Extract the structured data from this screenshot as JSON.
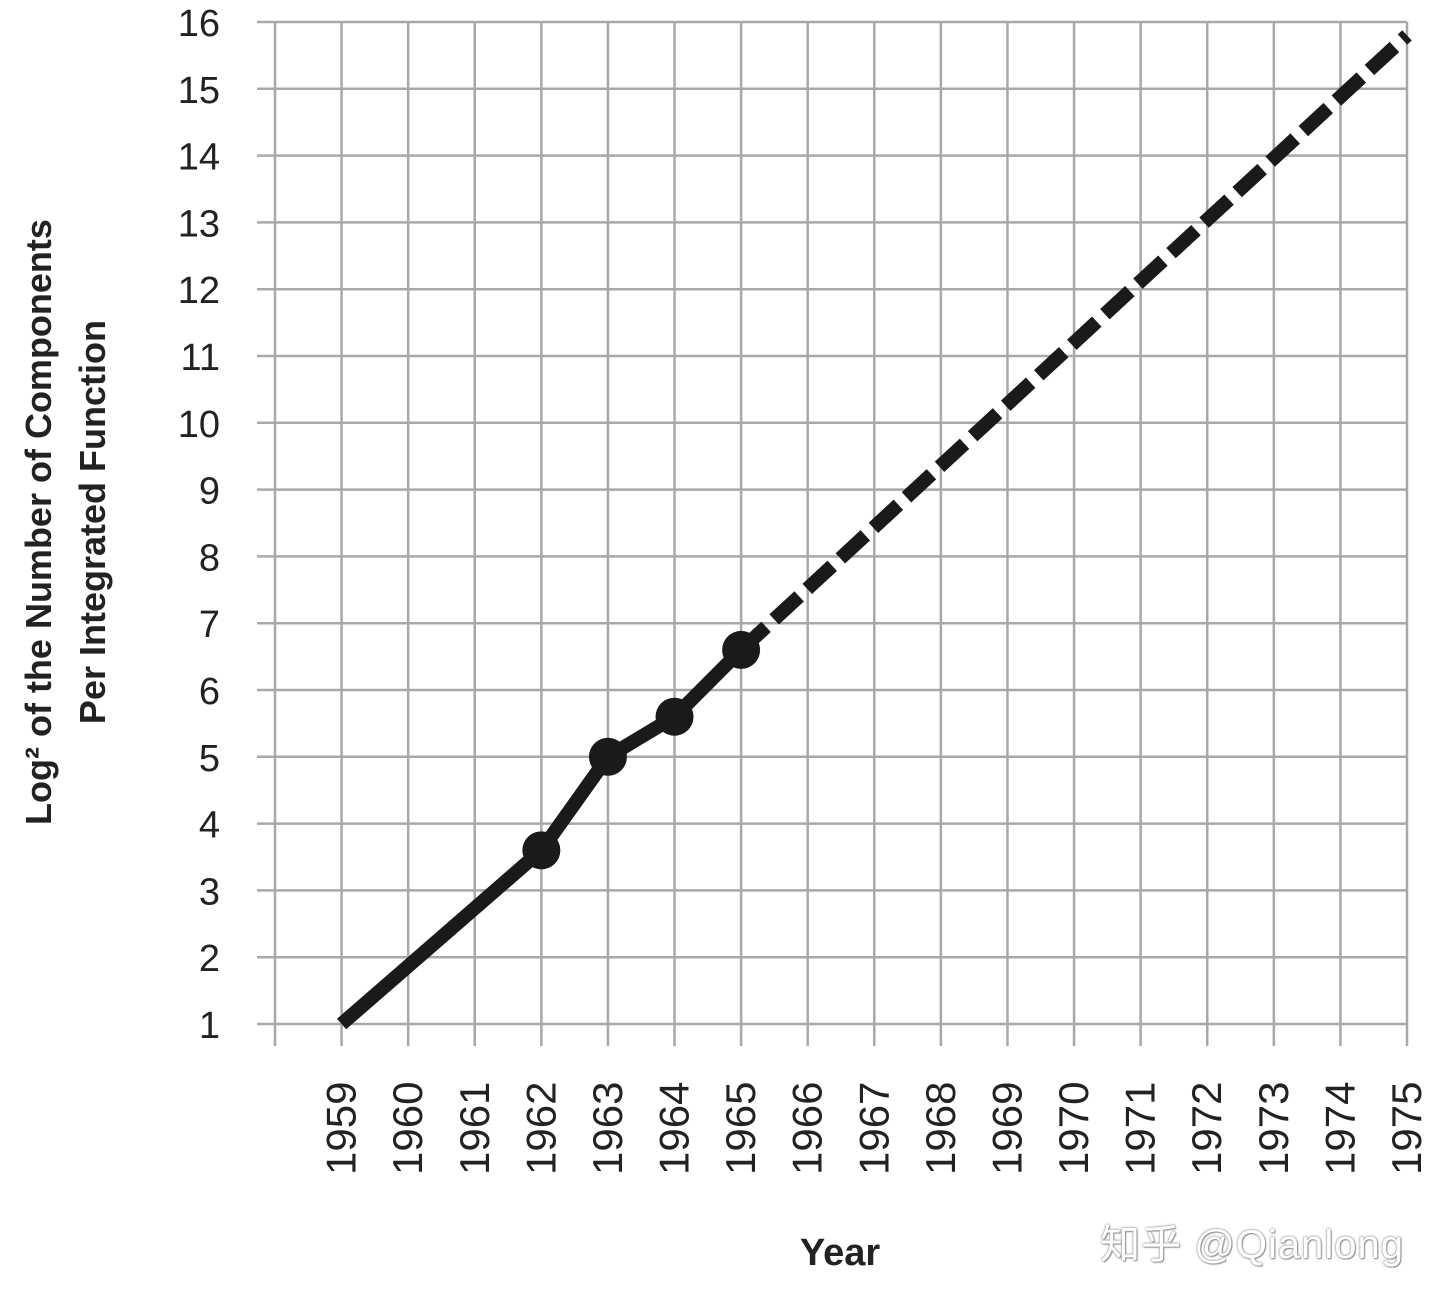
{
  "chart_data": {
    "type": "line",
    "title": "",
    "xlabel": "Year",
    "ylabel_lines": [
      "Log² of the Number of Components",
      "Per Integrated Function"
    ],
    "x_ticks": [
      1959,
      1960,
      1961,
      1962,
      1963,
      1964,
      1965,
      1966,
      1967,
      1968,
      1969,
      1970,
      1971,
      1972,
      1973,
      1974,
      1975
    ],
    "y_ticks": [
      1,
      2,
      3,
      4,
      5,
      6,
      7,
      8,
      9,
      10,
      11,
      12,
      13,
      14,
      15,
      16
    ],
    "xlim": [
      1958,
      1975
    ],
    "ylim": [
      1,
      16
    ],
    "grid": true,
    "series": [
      {
        "style": "solid",
        "points": [
          {
            "x": 1959,
            "y": 1.0,
            "marker": false
          },
          {
            "x": 1962,
            "y": 3.6,
            "marker": true
          },
          {
            "x": 1963,
            "y": 5.0,
            "marker": true
          },
          {
            "x": 1964,
            "y": 5.6,
            "marker": true
          },
          {
            "x": 1965,
            "y": 6.6,
            "marker": true
          }
        ]
      },
      {
        "style": "dashed",
        "points": [
          {
            "x": 1965,
            "y": 6.6
          },
          {
            "x": 1975,
            "y": 15.8
          }
        ]
      }
    ],
    "colors": {
      "line": "#1a1a1a",
      "grid": "#a8a8a8",
      "axis_text": "#222222"
    }
  },
  "watermark": "知乎 @Qianlong"
}
